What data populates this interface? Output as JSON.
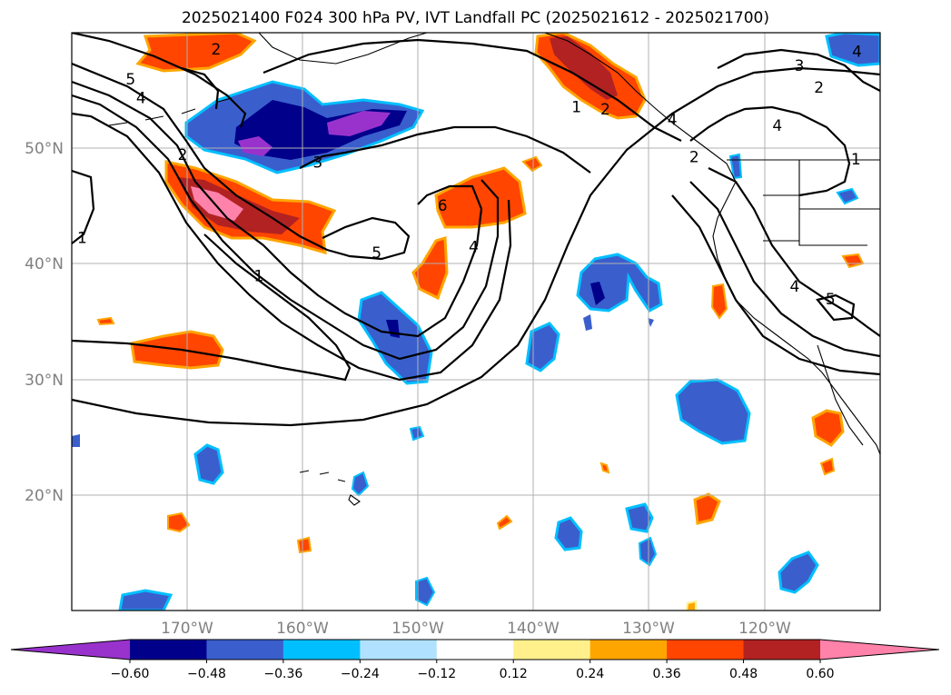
{
  "title": "2025021400 F024 300 hPa PV, IVT Landfall PC (2025021612 - 2025021700)",
  "map": {
    "projection": "lat-lon",
    "lon_range": [
      -180,
      -110
    ],
    "lat_range": [
      10,
      60
    ],
    "lon_ticks": [
      {
        "value": -170,
        "label": "170°W"
      },
      {
        "value": -160,
        "label": "160°W"
      },
      {
        "value": -150,
        "label": "150°W"
      },
      {
        "value": -140,
        "label": "140°W"
      },
      {
        "value": -130,
        "label": "130°W"
      },
      {
        "value": -120,
        "label": "120°W"
      }
    ],
    "lat_ticks": [
      {
        "value": 20,
        "label": "20°N"
      },
      {
        "value": 30,
        "label": "30°N"
      },
      {
        "value": 40,
        "label": "40°N"
      },
      {
        "value": 50,
        "label": "50°N"
      }
    ],
    "grid": true
  },
  "colorbar": {
    "extend": "both",
    "bounds": [
      -0.72,
      -0.6,
      -0.48,
      -0.36,
      -0.24,
      -0.12,
      0.12,
      0.24,
      0.36,
      0.48,
      0.6,
      0.72
    ],
    "colors": [
      "#9932cc",
      "#00008b",
      "#3a5fcd",
      "#00bfff",
      "#b0e2ff",
      "#ffffff",
      "#fff08c",
      "#ffa500",
      "#ff4500",
      "#b22222",
      "#ff82ab"
    ],
    "tick_labels": [
      "−0.60",
      "−0.48",
      "−0.36",
      "−0.24",
      "−0.12",
      "0.12",
      "0.24",
      "0.36",
      "0.48",
      "0.60"
    ]
  },
  "contour_labels": [
    {
      "text": "2",
      "lon": -167.5,
      "lat": 58.5
    },
    {
      "text": "5",
      "lon": -174.9,
      "lat": 55.9
    },
    {
      "text": "4",
      "lon": -174.0,
      "lat": 54.3
    },
    {
      "text": "2",
      "lon": -170.4,
      "lat": 49.4
    },
    {
      "text": "3",
      "lon": -158.7,
      "lat": 48.7
    },
    {
      "text": "1",
      "lon": -179.1,
      "lat": 42.2
    },
    {
      "text": "6",
      "lon": -147.9,
      "lat": 45.0
    },
    {
      "text": "5",
      "lon": -153.6,
      "lat": 40.9
    },
    {
      "text": "4",
      "lon": -145.2,
      "lat": 41.4
    },
    {
      "text": "1",
      "lon": -163.8,
      "lat": 38.9
    },
    {
      "text": "1",
      "lon": -136.3,
      "lat": 53.5
    },
    {
      "text": "2",
      "lon": -133.8,
      "lat": 53.3
    },
    {
      "text": "4",
      "lon": -128.0,
      "lat": 52.4
    },
    {
      "text": "2",
      "lon": -126.1,
      "lat": 49.2
    },
    {
      "text": "4",
      "lon": -118.9,
      "lat": 51.9
    },
    {
      "text": "3",
      "lon": -117.0,
      "lat": 57.1
    },
    {
      "text": "2",
      "lon": -115.3,
      "lat": 55.2
    },
    {
      "text": "4",
      "lon": -112.0,
      "lat": 58.3
    },
    {
      "text": "1",
      "lon": -112.1,
      "lat": 49.0
    },
    {
      "text": "4",
      "lon": -117.4,
      "lat": 38.0
    },
    {
      "text": "5",
      "lon": -114.3,
      "lat": 36.9
    }
  ]
}
